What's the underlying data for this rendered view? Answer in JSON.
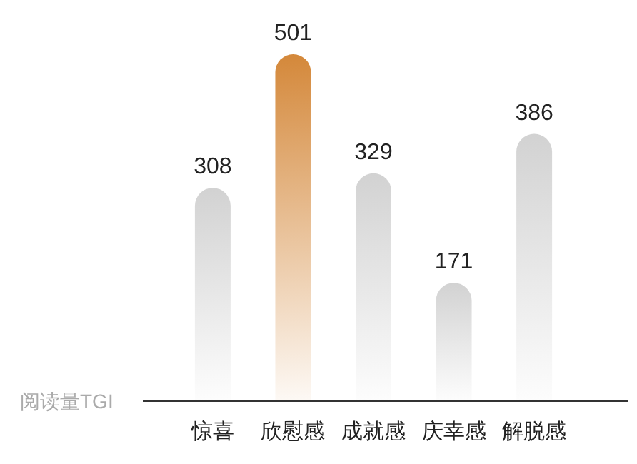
{
  "chart_data": {
    "type": "bar",
    "ylabel": "阅读量TGI",
    "categories": [
      "惊喜",
      "欣慰感",
      "成就感",
      "庆幸感",
      "解脱感"
    ],
    "values": [
      308,
      501,
      329,
      171,
      386
    ],
    "colors": [
      "#d2d2d2",
      "#d4883a",
      "#d2d2d2",
      "#d2d2d2",
      "#d2d2d2"
    ],
    "data_labels": true
  }
}
